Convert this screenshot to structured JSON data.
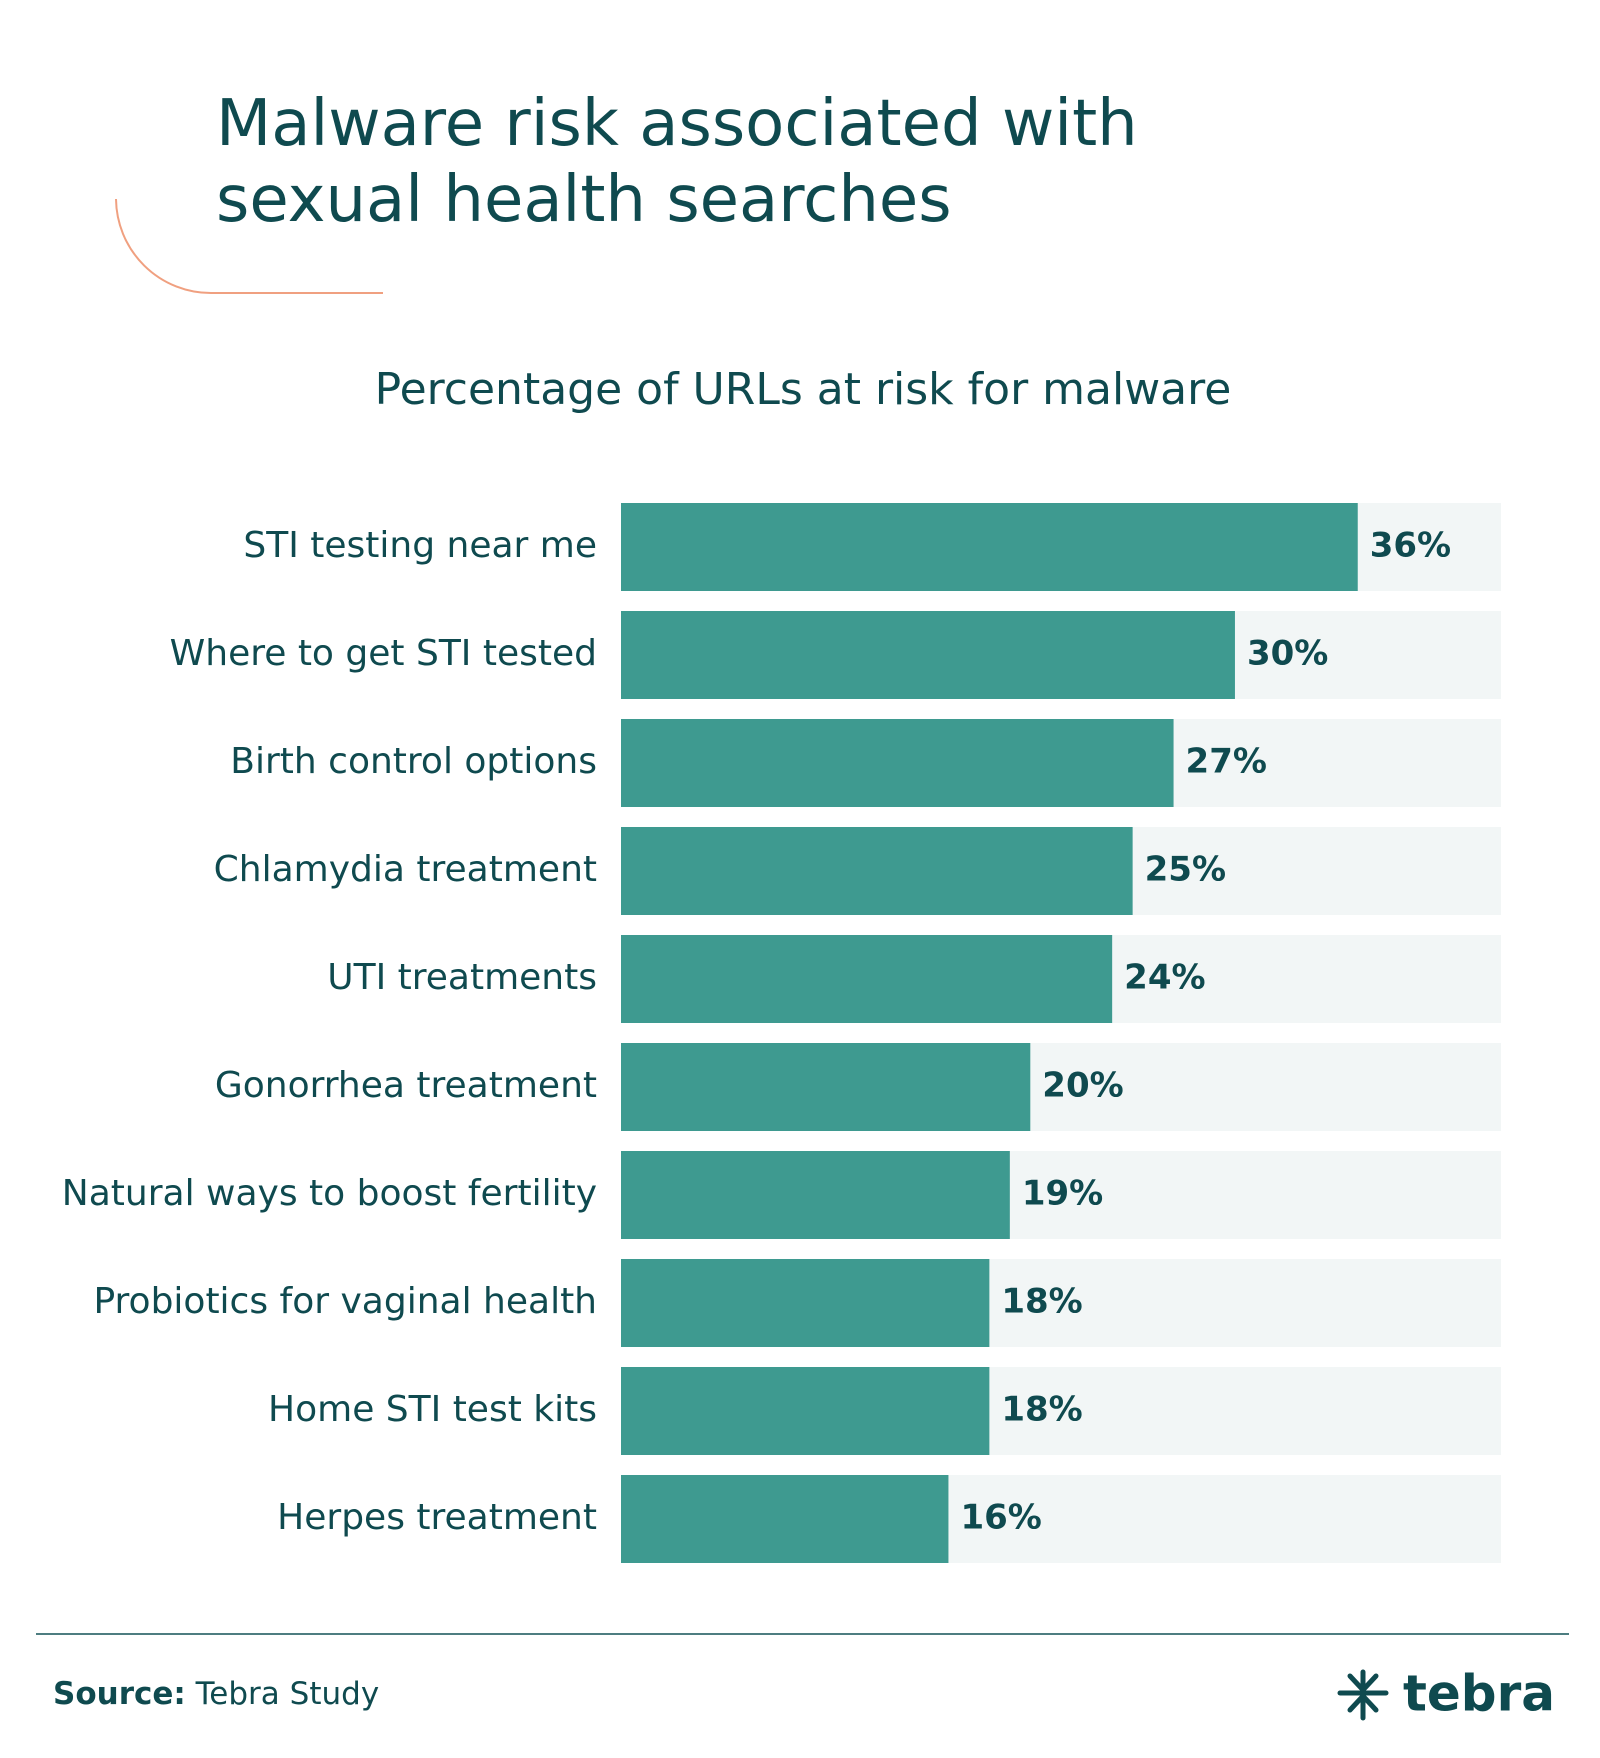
{
  "chart_data": {
    "type": "bar",
    "orientation": "horizontal",
    "title": "Malware risk associated with sexual health searches",
    "subtitle": "Percentage of URLs at risk for malware",
    "categories": [
      "STI testing near me",
      "Where to get STI tested",
      "Birth control options",
      "Chlamydia treatment",
      "UTI treatments",
      "Gonorrhea treatment",
      "Natural ways to boost fertility",
      "Probiotics for vaginal health",
      "Home STI test kits",
      "Herpes treatment"
    ],
    "values": [
      36,
      30,
      27,
      25,
      24,
      20,
      19,
      18,
      18,
      16
    ],
    "value_labels": [
      "36%",
      "30%",
      "27%",
      "25%",
      "24%",
      "20%",
      "19%",
      "18%",
      "18%",
      "16%"
    ],
    "color": "#3e9a90",
    "xlim": [
      0,
      43
    ],
    "source_label": "Source:",
    "source": "Tebra Study",
    "logo": "tebra"
  }
}
